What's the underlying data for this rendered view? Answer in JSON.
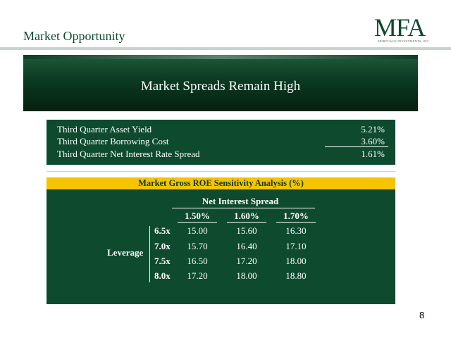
{
  "header": {
    "section_title": "Market Opportunity",
    "logo_mark": "MFA",
    "logo_sub": "MORTGAGE INVESTMENTS, INC."
  },
  "banner": {
    "title": "Market Spreads Remain High"
  },
  "yield_summary": {
    "rows": [
      {
        "label": "Third Quarter Asset Yield",
        "value": "5.21%"
      },
      {
        "label": "Third Quarter Borrowing Cost",
        "value": "3.60%"
      },
      {
        "label": "Third Quarter Net Interest Rate Spread",
        "value": "1.61%"
      }
    ]
  },
  "sensitivity": {
    "title": "Market Gross ROE Sensitivity Analysis (%)",
    "column_group": "Net Interest Spread",
    "columns": [
      "1.50%",
      "1.60%",
      "1.70%"
    ],
    "row_group": "Leverage",
    "rows": [
      {
        "leverage": "6.5x",
        "values": [
          "15.00",
          "15.60",
          "16.30"
        ]
      },
      {
        "leverage": "7.0x",
        "values": [
          "15.70",
          "16.40",
          "17.10"
        ]
      },
      {
        "leverage": "7.5x",
        "values": [
          "16.50",
          "17.20",
          "18.00"
        ]
      },
      {
        "leverage": "8.0x",
        "values": [
          "17.20",
          "18.00",
          "18.80"
        ]
      }
    ]
  },
  "footer": {
    "page_number": "8"
  },
  "colors": {
    "brand_green": "#0d4a2e",
    "accent_yellow": "#f5c400"
  }
}
